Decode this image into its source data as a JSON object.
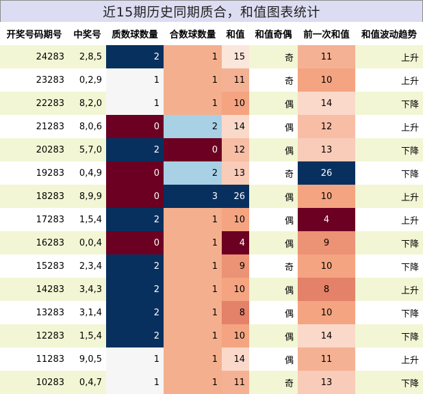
{
  "title": "近15期历史同期质合，和值图表统计",
  "headers": [
    "开奖号码期号",
    "中奖号",
    "质数球数量",
    "合数球数量",
    "和值",
    "和值奇偶",
    "前一次和值",
    "和值波动趋势"
  ],
  "rows": [
    {
      "issue": "24283",
      "numbers": "2,8,5",
      "prime": "2",
      "composite": "1",
      "sum": "15",
      "parity": "奇",
      "prev_sum": "11",
      "trend": "上升"
    },
    {
      "issue": "23283",
      "numbers": "0,2,9",
      "prime": "1",
      "composite": "1",
      "sum": "11",
      "parity": "奇",
      "prev_sum": "10",
      "trend": "上升"
    },
    {
      "issue": "22283",
      "numbers": "8,2,0",
      "prime": "1",
      "composite": "1",
      "sum": "10",
      "parity": "偶",
      "prev_sum": "14",
      "trend": "下降"
    },
    {
      "issue": "21283",
      "numbers": "8,0,6",
      "prime": "0",
      "composite": "2",
      "sum": "14",
      "parity": "偶",
      "prev_sum": "12",
      "trend": "上升"
    },
    {
      "issue": "20283",
      "numbers": "5,7,0",
      "prime": "2",
      "composite": "0",
      "sum": "12",
      "parity": "偶",
      "prev_sum": "13",
      "trend": "下降"
    },
    {
      "issue": "19283",
      "numbers": "0,4,9",
      "prime": "0",
      "composite": "2",
      "sum": "13",
      "parity": "奇",
      "prev_sum": "26",
      "trend": "下降"
    },
    {
      "issue": "18283",
      "numbers": "8,9,9",
      "prime": "0",
      "composite": "3",
      "sum": "26",
      "parity": "偶",
      "prev_sum": "10",
      "trend": "上升"
    },
    {
      "issue": "17283",
      "numbers": "1,5,4",
      "prime": "2",
      "composite": "1",
      "sum": "10",
      "parity": "偶",
      "prev_sum": "4",
      "trend": "上升"
    },
    {
      "issue": "16283",
      "numbers": "0,0,4",
      "prime": "0",
      "composite": "1",
      "sum": "4",
      "parity": "偶",
      "prev_sum": "9",
      "trend": "下降"
    },
    {
      "issue": "15283",
      "numbers": "2,3,4",
      "prime": "2",
      "composite": "1",
      "sum": "9",
      "parity": "奇",
      "prev_sum": "10",
      "trend": "下降"
    },
    {
      "issue": "14283",
      "numbers": "3,4,3",
      "prime": "2",
      "composite": "1",
      "sum": "10",
      "parity": "偶",
      "prev_sum": "8",
      "trend": "上升"
    },
    {
      "issue": "13283",
      "numbers": "3,1,4",
      "prime": "2",
      "composite": "1",
      "sum": "8",
      "parity": "偶",
      "prev_sum": "10",
      "trend": "下降"
    },
    {
      "issue": "12283",
      "numbers": "1,5,4",
      "prime": "2",
      "composite": "1",
      "sum": "10",
      "parity": "偶",
      "prev_sum": "14",
      "trend": "下降"
    },
    {
      "issue": "11283",
      "numbers": "9,0,5",
      "prime": "1",
      "composite": "1",
      "sum": "14",
      "parity": "偶",
      "prev_sum": "11",
      "trend": "上升"
    },
    {
      "issue": "10283",
      "numbers": "0,4,7",
      "prime": "1",
      "composite": "1",
      "sum": "11",
      "parity": "奇",
      "prev_sum": "13",
      "trend": "下降"
    }
  ],
  "colors": {
    "title_bg": "#dcdcf2",
    "row_stripe": "#f2f6d4",
    "prime_scale": {
      "0": "#6b0022",
      "1": "#f6f6f6",
      "2": "#08305f"
    },
    "composite_scale": {
      "0": "#6b0022",
      "1": "#f4b08e",
      "2": "#a9d1e6",
      "3": "#08305f"
    },
    "sum_scale_low": "#6b0022",
    "sum_scale_mid": "#f4a481",
    "sum_scale_high": "#08305f"
  }
}
